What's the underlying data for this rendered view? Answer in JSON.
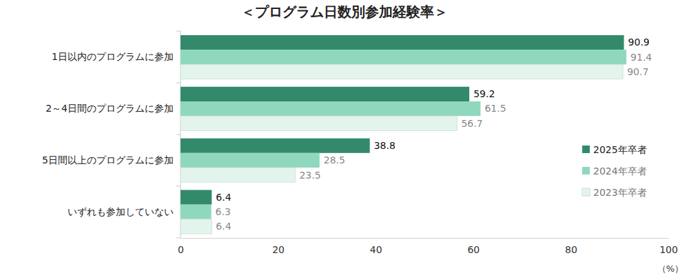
{
  "chart_data": {
    "type": "bar",
    "orientation": "horizontal",
    "title": "＜プログラム日数別参加経験率＞",
    "xlabel": "（%）",
    "categories": [
      "1日以内のプログラムに参加",
      "2～4日間のプログラムに参加",
      "5日間以上のプログラムに参加",
      "いずれも参加していない"
    ],
    "series": [
      {
        "name": "2025年卒者",
        "color": "#338a6b",
        "values": [
          90.9,
          59.2,
          38.8,
          6.4
        ]
      },
      {
        "name": "2024年卒者",
        "color": "#8fd8be",
        "values": [
          91.4,
          61.5,
          28.5,
          6.3
        ]
      },
      {
        "name": "2023年卒者",
        "color": "#e3f4ec",
        "values": [
          90.7,
          56.7,
          23.5,
          6.4
        ]
      }
    ],
    "xlim": [
      0,
      100
    ],
    "xticks": [
      0,
      20,
      40,
      60,
      80,
      100
    ],
    "grid": false,
    "legend": "lower right",
    "data_labels": true
  }
}
